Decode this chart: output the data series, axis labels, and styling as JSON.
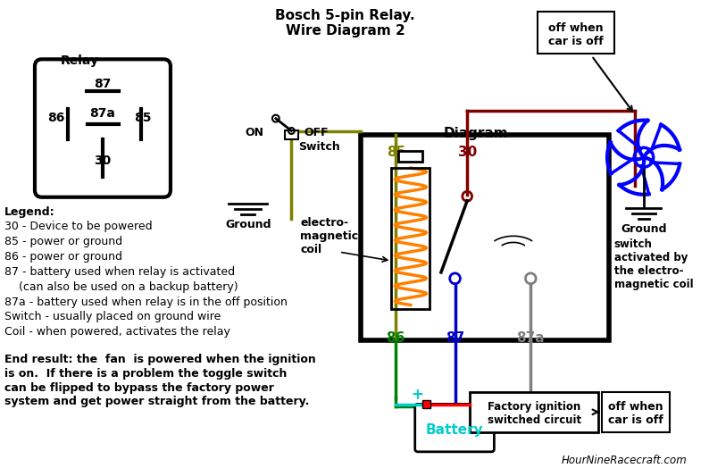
{
  "title_line1": "Bosch 5-pin Relay.",
  "title_line2": "Wire Diagram 2",
  "bg_color": "#ffffff",
  "c85": "#808000",
  "c86": "#008000",
  "c87": "#0000cd",
  "c87a": "#808080",
  "c30": "#800000",
  "c_bat": "#00cccc",
  "c_coil": "#ff8000",
  "c_fan": "#0000ff",
  "legend": [
    "Legend:",
    "30 - Device to be powered",
    "85 - power or ground",
    "86 - power or ground",
    "87 - battery used when relay is activated",
    "    (can also be used on a backup battery)",
    "87a - battery used when relay is in the off position",
    "Switch - usually placed on ground wire",
    "Coil - when powered, activates the relay"
  ],
  "end_result": [
    "End result: the  fan  is powered when the ignition",
    "is on.  If there is a problem the toggle switch",
    "can be flipped to bypass the factory power",
    "system and get power straight from the battery."
  ],
  "website": "HourNineRacecraft.com"
}
